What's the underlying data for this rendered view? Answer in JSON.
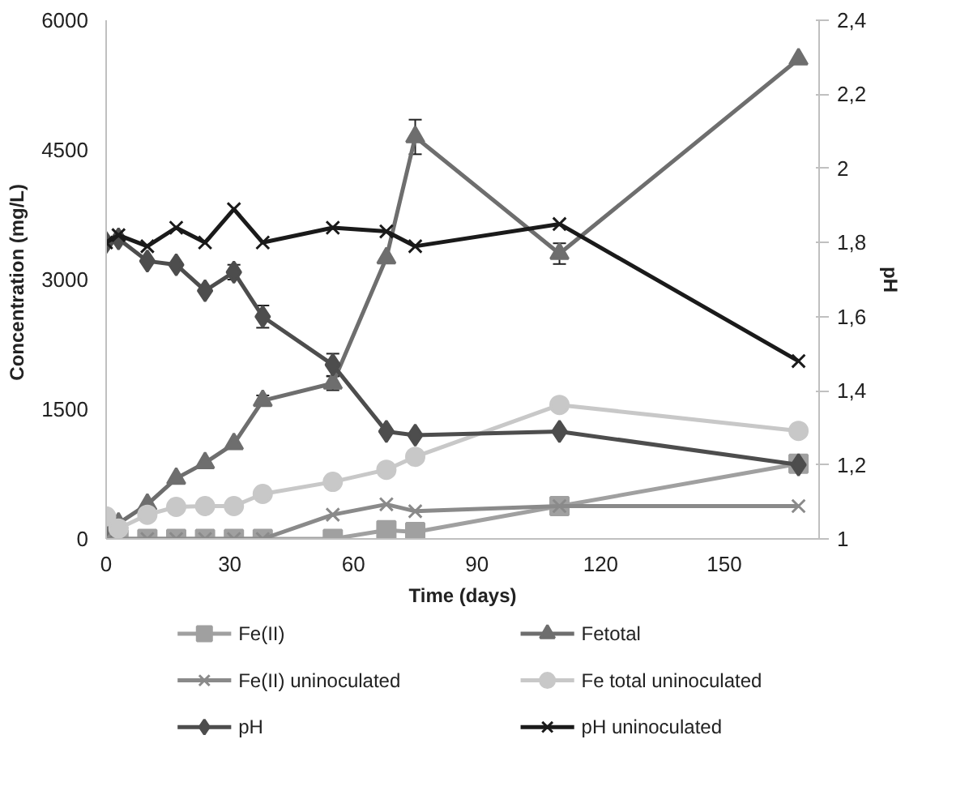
{
  "chart_data": {
    "type": "line",
    "xlabel": "Time (days)",
    "ylabel": "Concentration  (mg/L)",
    "y2label": "pH",
    "x": [
      0,
      3,
      10,
      17,
      24,
      31,
      38,
      55,
      68,
      75,
      110,
      168
    ],
    "xlim": [
      0,
      173
    ],
    "xticks": [
      0,
      30,
      60,
      90,
      120,
      150
    ],
    "ylim": [
      0,
      6000
    ],
    "yticks": [
      0,
      1500,
      3000,
      4500,
      6000
    ],
    "y2lim": [
      1,
      2.4
    ],
    "y2ticks": [
      1,
      {
        "value": 1.2,
        "label": "1,2"
      },
      {
        "value": 1.4,
        "label": "1,4"
      },
      {
        "value": 1.6,
        "label": "1,6"
      },
      {
        "value": 1.8,
        "label": "1,8"
      },
      2,
      {
        "value": 2.2,
        "label": "2,2"
      },
      {
        "value": 2.4,
        "label": "2,4"
      }
    ],
    "grid": false,
    "legend": "bottom",
    "series": [
      {
        "name": "Fe(II)",
        "color": "#a0a0a0",
        "marker": "square",
        "values": [
          0,
          0,
          0,
          0,
          0,
          0,
          0,
          0,
          100,
          80,
          380,
          870
        ]
      },
      {
        "name": "Fetotal",
        "color": "#6e6e6e",
        "marker": "triangle",
        "values": [
          50,
          180,
          400,
          700,
          880,
          1100,
          1600,
          1800,
          3250,
          4650,
          3300,
          5550
        ],
        "errors": [
          null,
          null,
          null,
          null,
          null,
          null,
          60,
          80,
          null,
          200,
          120,
          null
        ]
      },
      {
        "name": "Fe(II)  uninoculated",
        "color": "#8a8a8a",
        "marker": "cross",
        "values": [
          0,
          0,
          0,
          0,
          0,
          0,
          0,
          280,
          400,
          320,
          380,
          380
        ]
      },
      {
        "name": "Fe total uninoculated",
        "color": "#c8c8c8",
        "marker": "circle",
        "values": [
          260,
          120,
          280,
          370,
          380,
          380,
          520,
          660,
          800,
          950,
          1550,
          1250
        ]
      },
      {
        "name": "pH",
        "color": "#4d4d4d",
        "marker": "diamond",
        "axis": "y2",
        "values": [
          1.8,
          1.81,
          1.75,
          1.74,
          1.67,
          1.72,
          1.6,
          1.47,
          1.29,
          1.28,
          1.29,
          1.2
        ],
        "errors": [
          null,
          null,
          null,
          null,
          null,
          0.02,
          0.03,
          0.03,
          null,
          null,
          null,
          null
        ]
      },
      {
        "name": "pH uninoculated",
        "color": "#1a1a1a",
        "marker": "cross",
        "axis": "y2",
        "values": [
          1.8,
          1.82,
          1.79,
          1.84,
          1.8,
          1.89,
          1.8,
          1.84,
          1.83,
          1.79,
          1.85,
          1.48
        ]
      }
    ]
  }
}
